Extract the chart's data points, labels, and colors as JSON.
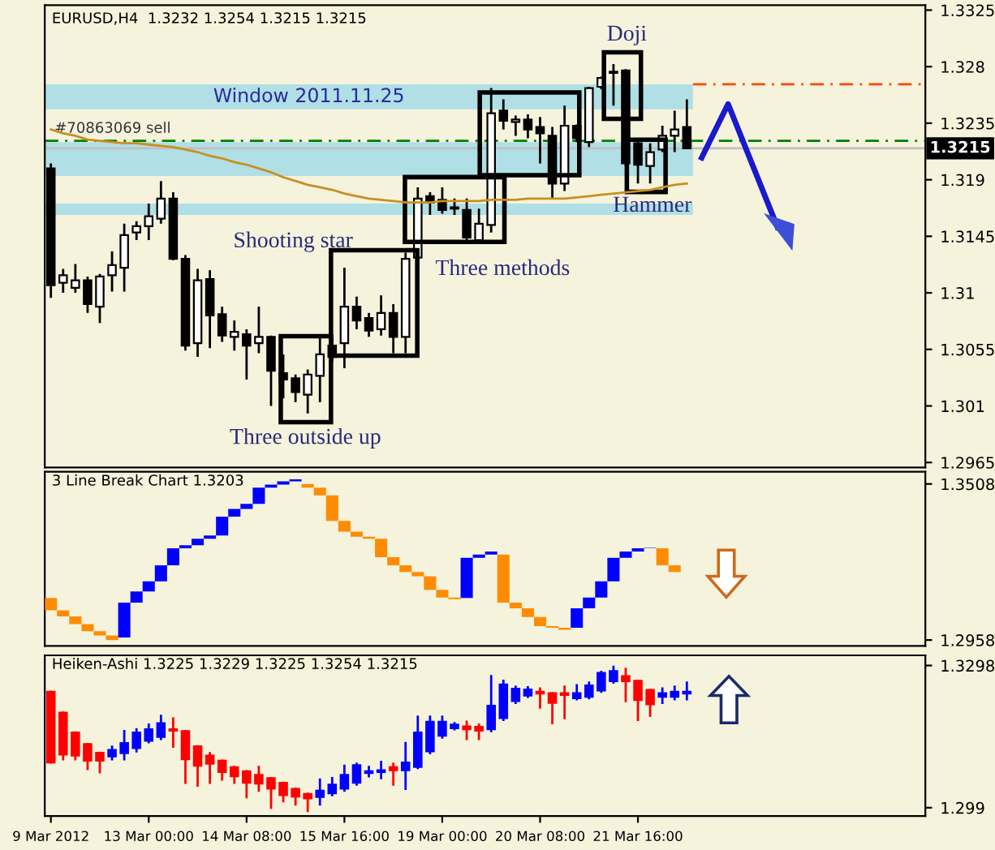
{
  "chart_data": [
    {
      "type": "candlestick",
      "title": "EURUSD,H4  1.3232 1.3254 1.3215 1.3215",
      "categories": [
        null,
        null,
        null,
        null,
        null,
        null,
        null,
        null,
        null,
        null,
        null,
        null,
        null,
        null,
        null,
        null,
        null,
        null,
        null,
        null,
        null,
        null,
        null,
        null,
        null,
        null,
        null,
        null,
        null,
        null,
        null,
        null,
        null,
        null,
        null,
        null,
        null,
        null,
        null,
        null,
        null,
        null,
        null,
        null,
        null,
        null,
        null,
        null,
        null,
        null,
        null,
        null,
        null,
        null,
        null,
        null,
        null,
        null,
        null,
        null,
        null,
        null,
        null,
        null,
        null,
        null,
        null,
        null,
        null,
        null,
        null,
        null
      ],
      "ohlc": [
        [
          1.3199,
          1.3203,
          1.3096,
          1.3106
        ],
        [
          1.3108,
          1.3119,
          1.31,
          1.3114
        ],
        [
          1.3104,
          1.3123,
          1.31,
          1.311
        ],
        [
          1.311,
          1.3113,
          1.3084,
          1.3091
        ],
        [
          1.3089,
          1.3115,
          1.3076,
          1.3113
        ],
        [
          1.3114,
          1.3133,
          1.3101,
          1.3122
        ],
        [
          1.312,
          1.3155,
          1.3101,
          1.3146
        ],
        [
          1.3148,
          1.3157,
          1.3142,
          1.3153
        ],
        [
          1.3153,
          1.3171,
          1.3142,
          1.3161
        ],
        [
          1.3159,
          1.3189,
          1.3155,
          1.3175
        ],
        [
          1.3175,
          1.318,
          1.3126,
          1.3127
        ],
        [
          1.3127,
          1.313,
          1.3054,
          1.3058
        ],
        [
          1.306,
          1.3119,
          1.3049,
          1.311
        ],
        [
          1.3111,
          1.3118,
          1.3056,
          1.3082
        ],
        [
          1.3083,
          1.3089,
          1.3061,
          1.3066
        ],
        [
          1.3065,
          1.3078,
          1.3054,
          1.3069
        ],
        [
          1.3067,
          1.3071,
          1.3031,
          1.3058
        ],
        [
          1.306,
          1.3089,
          1.3052,
          1.3065
        ],
        [
          1.3065,
          1.3066,
          1.301,
          1.3038
        ],
        [
          1.3036,
          1.3051,
          1.3016,
          1.3031
        ],
        [
          1.3032,
          1.3035,
          1.3013,
          1.3021
        ],
        [
          1.3019,
          1.3039,
          1.3004,
          1.3035
        ],
        [
          1.3034,
          1.3065,
          1.3013,
          1.3051
        ],
        [
          1.3058,
          1.3065,
          1.3045,
          1.3049
        ],
        [
          1.306,
          1.312,
          1.304,
          1.3089
        ],
        [
          1.3089,
          1.3097,
          1.3071,
          1.3078
        ],
        [
          1.308,
          1.3084,
          1.3065,
          1.307
        ],
        [
          1.3071,
          1.3098,
          1.3066,
          1.3084
        ],
        [
          1.3084,
          1.3091,
          1.3052,
          1.3065
        ],
        [
          1.3065,
          1.3132,
          1.3052,
          1.3127
        ],
        [
          1.3128,
          1.3184,
          1.3128,
          1.3175
        ],
        [
          1.3177,
          1.318,
          1.3162,
          1.3172
        ],
        [
          1.3174,
          1.3184,
          1.3163,
          1.3166
        ],
        [
          1.3168,
          1.3175,
          1.3162,
          1.3167
        ],
        [
          1.3166,
          1.3175,
          1.3141,
          1.3144
        ],
        [
          1.3142,
          1.3167,
          1.3139,
          1.3155
        ],
        [
          1.3154,
          1.3263,
          1.3148,
          1.3243
        ],
        [
          1.3245,
          1.3254,
          1.323,
          1.3237
        ],
        [
          1.3236,
          1.3241,
          1.3225,
          1.3238
        ],
        [
          1.3238,
          1.3242,
          1.3223,
          1.323
        ],
        [
          1.3232,
          1.324,
          1.3203,
          1.3227
        ],
        [
          1.3225,
          1.3232,
          1.3175,
          1.3187
        ],
        [
          1.3187,
          1.3249,
          1.3181,
          1.3233
        ],
        [
          1.3233,
          1.3234,
          1.322,
          1.3223
        ],
        [
          1.322,
          1.3264,
          1.3216,
          1.3263
        ],
        [
          1.3264,
          1.3272,
          1.3262,
          1.3271
        ],
        [
          1.3275,
          1.3282,
          1.3249,
          1.3276
        ],
        [
          1.3277,
          1.3278,
          1.3201,
          1.3203
        ],
        [
          1.3219,
          1.322,
          1.3187,
          1.3202
        ],
        [
          1.3201,
          1.3219,
          1.3187,
          1.3212
        ],
        [
          1.3214,
          1.3233,
          1.3212,
          1.3225
        ],
        [
          1.3225,
          1.3245,
          1.3212,
          1.323
        ],
        [
          1.3232,
          1.3254,
          1.3215,
          1.3215
        ],
        null,
        null,
        null,
        null,
        null,
        null,
        null,
        null,
        null,
        null,
        null,
        null,
        null,
        null,
        null,
        null,
        null,
        null,
        null
      ],
      "color": "#000000",
      "colors": [
        "#000000",
        "#ffffff",
        "#ffffff",
        "#000000",
        "#ffffff",
        "#ffffff",
        "#ffffff",
        "#ffffff",
        "#ffffff",
        "#ffffff",
        "#000000",
        "#000000",
        "#ffffff",
        "#000000",
        "#000000",
        "#ffffff",
        "#000000",
        "#ffffff",
        "#000000",
        "#000000",
        "#000000",
        "#ffffff",
        "#ffffff",
        "#000000",
        "#ffffff",
        "#000000",
        "#000000",
        "#ffffff",
        "#000000",
        "#ffffff",
        "#ffffff",
        "#000000",
        "#000000",
        "#ffffff",
        "#000000",
        "#ffffff",
        "#ffffff",
        "#000000",
        "#ffffff",
        "#000000",
        "#000000",
        "#000000",
        "#ffffff",
        "#000000",
        "#ffffff",
        "#ffffff",
        "#ffffff",
        "#000000",
        "#000000",
        "#ffffff",
        "#ffffff",
        "#ffffff",
        "#000000",
        null,
        null,
        null,
        null,
        null,
        null,
        null,
        null,
        null,
        null,
        null,
        null,
        null,
        null,
        null,
        null,
        null,
        null,
        null
      ],
      "series": [
        {
          "type": "line",
          "color": "#c8901e",
          "values": [
            1.323,
            1.3227,
            1.3225,
            1.3222,
            1.3221,
            1.322,
            1.3219,
            1.3219,
            1.3218,
            1.3217,
            1.3216,
            1.3214,
            1.3212,
            1.3209,
            1.3207,
            1.3204,
            1.3202,
            1.3199,
            1.3196,
            1.3192,
            1.3189,
            1.3186,
            1.3184,
            1.3182,
            1.3179,
            1.3177,
            1.3175,
            1.3174,
            1.3173,
            1.3172,
            1.3172,
            1.3172,
            1.3173,
            1.3173,
            1.3173,
            1.3173,
            1.3174,
            1.3174,
            1.3174,
            1.3175,
            1.3175,
            1.3175,
            1.3175,
            1.3176,
            1.3177,
            1.3178,
            1.3179,
            1.318,
            1.3181,
            1.3182,
            1.3184,
            1.3186,
            1.3187,
            null,
            null,
            null,
            null,
            null,
            null,
            null,
            null,
            null,
            null,
            null,
            null,
            null,
            null,
            null,
            null,
            null,
            null,
            null
          ]
        }
      ],
      "ylim": [
        1.2961,
        1.3329
      ],
      "yticks": [
        1.3325,
        1.328,
        1.3235,
        1.319,
        1.3145,
        1.31,
        1.3055,
        1.301,
        1.2965
      ],
      "bands": [
        {
          "axis": "y",
          "from": 1.3246,
          "to": 1.3266,
          "label": "Window 2011.11.25",
          "color": "#b0dfe6"
        },
        {
          "axis": "y",
          "from": 1.3193,
          "to": 1.322,
          "color": "#b0dfe6"
        },
        {
          "axis": "y",
          "from": 1.3162,
          "to": 1.3171,
          "color": "#b0dfe6"
        }
      ],
      "ref_lines": [
        {
          "axis": "y",
          "value": 1.3266,
          "color": "#ff4500",
          "line_style": "dashed"
        },
        {
          "axis": "y",
          "value": 1.3221,
          "label": "#70863069 sell",
          "color": "#008000",
          "line_style": "dashed"
        },
        {
          "axis": "y",
          "value": 1.3215,
          "label": "1.3215",
          "color": "#c0c0c0",
          "line_style": "solid"
        }
      ],
      "annotations": [
        "Doji",
        "Hammer",
        "Shooting star",
        "Three methods",
        "Three outside up"
      ],
      "tick_labels": "y",
      "grid": false,
      "legend": false
    },
    {
      "type": "bar",
      "title": "3 Line Break Chart 1.3203",
      "categories": [
        null,
        null,
        null,
        null,
        null,
        null,
        null,
        null,
        null,
        null,
        null,
        null,
        null,
        null,
        null,
        null,
        null,
        null,
        null,
        null,
        null,
        null,
        null,
        null,
        null,
        null,
        null,
        null,
        null,
        null,
        null,
        null,
        null,
        null,
        null,
        null,
        null,
        null,
        null,
        null,
        null,
        null,
        null,
        null,
        null,
        null,
        null,
        null,
        null,
        null,
        null,
        null,
        null,
        null,
        null,
        null,
        null,
        null,
        null,
        null,
        null,
        null,
        null,
        null,
        null,
        null,
        null,
        null,
        null,
        null,
        null,
        null
      ],
      "base": [
        1.3063,
        1.3041,
        1.3014,
        1.2989,
        1.2974,
        1.2958,
        1.2967,
        1.309,
        1.3129,
        1.3165,
        1.3221,
        1.3281,
        1.3292,
        1.3315,
        1.3326,
        1.3393,
        1.342,
        1.3438,
        1.3495,
        1.3506,
        1.3517,
        1.3495,
        1.3468,
        1.3378,
        1.334,
        1.3322,
        1.3315,
        1.325,
        1.3221,
        1.3198,
        1.3183,
        1.3135,
        1.3108,
        1.3102,
        1.3106,
        1.3248,
        1.3259,
        1.309,
        1.307,
        1.3039,
        1.3007,
        1.3001,
        1.2994,
        1.3001,
        1.307,
        1.3108,
        1.3165,
        1.3248,
        1.327,
        1.3281,
        1.3221,
        1.3198,
        null,
        null,
        null,
        null,
        null,
        null,
        null,
        null,
        null,
        null,
        null,
        null,
        null,
        null,
        null,
        null,
        null,
        null,
        null,
        null
      ],
      "values": [
        0.0043,
        0.0022,
        0.0027,
        0.0025,
        0.0015,
        0.0016,
        0.0123,
        0.0039,
        0.0036,
        0.0056,
        0.006,
        0.0011,
        0.0023,
        0.0011,
        0.0067,
        0.0027,
        0.0018,
        0.0057,
        0.0011,
        0.0011,
        0.0007,
        0.0013,
        0.0027,
        0.009,
        0.0038,
        0.0018,
        0.0007,
        0.0065,
        0.0029,
        0.0023,
        0.0015,
        0.0048,
        0.0027,
        0.0006,
        0.0142,
        0.0011,
        0.0011,
        0.0169,
        0.002,
        0.0031,
        0.0032,
        0.0006,
        0.0007,
        0.0069,
        0.0038,
        0.0057,
        0.0083,
        0.0022,
        0.0011,
        0.0002,
        0.006,
        0.0023,
        null,
        null,
        null,
        null,
        null,
        null,
        null,
        null,
        null,
        null,
        null,
        null,
        null,
        null,
        null,
        null,
        null,
        null,
        null,
        null
      ],
      "colors": [
        "#ff8c00",
        "#ff8c00",
        "#ff8c00",
        "#ff8c00",
        "#ff8c00",
        "#ff8c00",
        "#0000ff",
        "#0000ff",
        "#0000ff",
        "#0000ff",
        "#0000ff",
        "#0000ff",
        "#0000ff",
        "#0000ff",
        "#0000ff",
        "#0000ff",
        "#0000ff",
        "#0000ff",
        "#0000ff",
        "#0000ff",
        "#0000ff",
        "#ff8c00",
        "#ff8c00",
        "#ff8c00",
        "#ff8c00",
        "#ff8c00",
        "#ff8c00",
        "#ff8c00",
        "#ff8c00",
        "#ff8c00",
        "#ff8c00",
        "#ff8c00",
        "#ff8c00",
        "#ff8c00",
        "#0000ff",
        "#0000ff",
        "#0000ff",
        "#ff8c00",
        "#ff8c00",
        "#ff8c00",
        "#ff8c00",
        "#ff8c00",
        "#ff8c00",
        "#0000ff",
        "#0000ff",
        "#0000ff",
        "#0000ff",
        "#0000ff",
        "#0000ff",
        "#0000ff",
        "#ff8c00",
        "#ff8c00",
        null,
        null,
        null,
        null,
        null,
        null,
        null,
        null,
        null,
        null,
        null,
        null,
        null,
        null,
        null,
        null,
        null,
        null,
        null,
        null
      ],
      "ylim": [
        1.2937,
        1.3551
      ],
      "yticks": [
        1.3508,
        1.2958
      ],
      "tick_labels": "y",
      "grid": false,
      "legend": false
    },
    {
      "type": "candlestick",
      "title": "Heiken-Ashi 1.3225 1.3229 1.3225 1.3254 1.3215",
      "categories": [
        "9 Mar 2012",
        null,
        null,
        null,
        null,
        null,
        null,
        null,
        "13 Mar 00:00",
        null,
        null,
        null,
        null,
        null,
        null,
        null,
        "14 Mar 08:00",
        null,
        null,
        null,
        null,
        null,
        null,
        null,
        "15 Mar 16:00",
        null,
        null,
        null,
        null,
        null,
        null,
        null,
        "19 Mar 00:00",
        null,
        null,
        null,
        null,
        null,
        null,
        null,
        "20 Mar 08:00",
        null,
        null,
        null,
        null,
        null,
        null,
        null,
        "21 Mar 16:00",
        null,
        null,
        null,
        null,
        null,
        null,
        null,
        null,
        null,
        null,
        null,
        null,
        null,
        null,
        null,
        null,
        null,
        null,
        null,
        null,
        null,
        null,
        null
      ],
      "ohlc": [
        [
          1.3241,
          1.3241,
          1.3088,
          1.3088
        ],
        [
          1.3196,
          1.3196,
          1.3095,
          1.3105
        ],
        [
          1.3153,
          1.3153,
          1.3095,
          1.3103
        ],
        [
          1.3128,
          1.3128,
          1.3074,
          1.3092
        ],
        [
          1.3109,
          1.3109,
          1.3067,
          1.3092
        ],
        [
          1.3101,
          1.3122,
          1.3095,
          1.3115
        ],
        [
          1.3108,
          1.3156,
          1.3095,
          1.313
        ],
        [
          1.3119,
          1.316,
          1.3112,
          1.3153
        ],
        [
          1.3135,
          1.317,
          1.3132,
          1.316
        ],
        [
          1.3143,
          1.3189,
          1.3139,
          1.3173
        ],
        [
          1.316,
          1.3183,
          1.3122,
          1.3157
        ],
        [
          1.3156,
          1.3156,
          1.3044,
          1.3095
        ],
        [
          1.3123,
          1.3123,
          1.3038,
          1.3081
        ],
        [
          1.3103,
          1.3108,
          1.3044,
          1.3085
        ],
        [
          1.3092,
          1.3092,
          1.3051,
          1.3067
        ],
        [
          1.3078,
          1.3078,
          1.3044,
          1.3058
        ],
        [
          1.3069,
          1.3069,
          1.3013,
          1.3044
        ],
        [
          1.3061,
          1.3078,
          1.3027,
          1.3042
        ],
        [
          1.3054,
          1.3054,
          1.299,
          1.3031
        ],
        [
          1.3044,
          1.3044,
          1.3004,
          1.3017
        ],
        [
          1.3031,
          1.3031,
          1.2997,
          1.3014
        ],
        [
          1.302,
          1.302,
          1.2983,
          1.301
        ],
        [
          1.3013,
          1.3051,
          1.2997,
          1.3027
        ],
        [
          1.3021,
          1.3054,
          1.3017,
          1.304
        ],
        [
          1.3031,
          1.3081,
          1.3027,
          1.3061
        ],
        [
          1.3044,
          1.3085,
          1.304,
          1.3082
        ],
        [
          1.3065,
          1.3078,
          1.3058,
          1.3069
        ],
        [
          1.3067,
          1.3089,
          1.3054,
          1.3071
        ],
        [
          1.3078,
          1.3085,
          1.304,
          1.3071
        ],
        [
          1.3071,
          1.313,
          1.3031,
          1.3088
        ],
        [
          1.3078,
          1.3187,
          1.3076,
          1.3153
        ],
        [
          1.3112,
          1.3187,
          1.3108,
          1.3176
        ],
        [
          1.3146,
          1.3187,
          1.3142,
          1.3176
        ],
        [
          1.3162,
          1.3173,
          1.316,
          1.317
        ],
        [
          1.3166,
          1.3176,
          1.3139,
          1.316
        ],
        [
          1.3165,
          1.317,
          1.3139,
          1.3157
        ],
        [
          1.316,
          1.3275,
          1.3156,
          1.3211
        ],
        [
          1.3184,
          1.3265,
          1.318,
          1.3257
        ],
        [
          1.3221,
          1.3252,
          1.3217,
          1.3248
        ],
        [
          1.3233,
          1.3251,
          1.323,
          1.3246
        ],
        [
          1.3241,
          1.3248,
          1.3207,
          1.3237
        ],
        [
          1.3238,
          1.3238,
          1.3173,
          1.3217
        ],
        [
          1.3238,
          1.3252,
          1.3184,
          1.3234
        ],
        [
          1.3227,
          1.3255,
          1.3225,
          1.3238
        ],
        [
          1.323,
          1.3261,
          1.3227,
          1.3255
        ],
        [
          1.3244,
          1.3284,
          1.3241,
          1.3282
        ],
        [
          1.3264,
          1.3295,
          1.3261,
          1.3286
        ],
        [
          1.3275,
          1.3291,
          1.3221,
          1.3264
        ],
        [
          1.3265,
          1.3265,
          1.318,
          1.3223
        ],
        [
          1.3245,
          1.3245,
          1.3189,
          1.3214
        ],
        [
          1.323,
          1.3248,
          1.3217,
          1.3238
        ],
        [
          1.323,
          1.3252,
          1.3225,
          1.3241
        ],
        [
          1.3237,
          1.3261,
          1.3225,
          1.3241
        ],
        null,
        null,
        null,
        null,
        null,
        null,
        null,
        null,
        null,
        null,
        null,
        null,
        null,
        null,
        null,
        null,
        null,
        null,
        null
      ],
      "colors": [
        "#ff0000",
        "#ff0000",
        "#ff0000",
        "#ff0000",
        "#ff0000",
        "#0000ff",
        "#0000ff",
        "#0000ff",
        "#0000ff",
        "#0000ff",
        "#ff0000",
        "#ff0000",
        "#ff0000",
        "#ff0000",
        "#ff0000",
        "#ff0000",
        "#ff0000",
        "#ff0000",
        "#ff0000",
        "#ff0000",
        "#ff0000",
        "#ff0000",
        "#0000ff",
        "#0000ff",
        "#0000ff",
        "#0000ff",
        "#0000ff",
        "#0000ff",
        "#ff0000",
        "#0000ff",
        "#0000ff",
        "#0000ff",
        "#0000ff",
        "#0000ff",
        "#ff0000",
        "#ff0000",
        "#0000ff",
        "#0000ff",
        "#0000ff",
        "#0000ff",
        "#ff0000",
        "#ff0000",
        "#ff0000",
        "#0000ff",
        "#0000ff",
        "#0000ff",
        "#0000ff",
        "#ff0000",
        "#ff0000",
        "#ff0000",
        "#0000ff",
        "#0000ff",
        "#0000ff",
        null,
        null,
        null,
        null,
        null,
        null,
        null,
        null,
        null,
        null,
        null,
        null,
        null,
        null,
        null,
        null,
        null,
        null,
        null
      ],
      "ylim": [
        1.2972,
        1.332
      ],
      "yticks": [
        1.3298,
        1.299
      ],
      "grid": false,
      "legend": false
    }
  ]
}
